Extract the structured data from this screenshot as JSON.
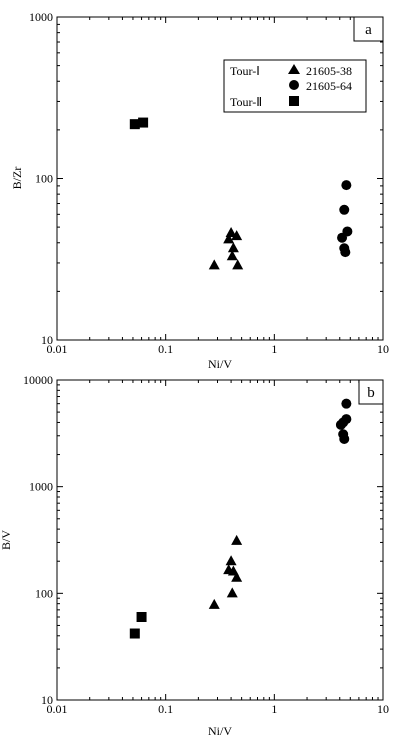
{
  "chart_data": [
    {
      "type": "scatter",
      "panel_label": "a",
      "xlabel": "Ni/V",
      "ylabel": "B/Zr",
      "xscale": "log",
      "yscale": "log",
      "xlim": [
        0.01,
        10
      ],
      "ylim": [
        10,
        1000
      ],
      "x_tick_labels": [
        "0.01",
        "0.1",
        "1",
        "10"
      ],
      "y_tick_labels": [
        "10",
        "100",
        "1000"
      ],
      "legend": {
        "placement": "top-right",
        "groups": [
          "Tour-Ⅰ",
          "Tour-Ⅱ"
        ],
        "entries": [
          {
            "group": "Tour-Ⅰ",
            "name": "21605-38",
            "marker": "triangle"
          },
          {
            "group": "Tour-Ⅰ",
            "name": "21605-64",
            "marker": "circle"
          },
          {
            "group": "Tour-Ⅱ",
            "name": "",
            "marker": "square"
          }
        ]
      },
      "series": [
        {
          "name": "21605-38",
          "marker": "triangle",
          "x": [
            0.28,
            0.38,
            0.4,
            0.42,
            0.45,
            0.41,
            0.46
          ],
          "y": [
            29,
            42,
            46,
            37,
            44,
            33,
            29
          ]
        },
        {
          "name": "21605-64",
          "marker": "circle",
          "x": [
            4.6,
            4.4,
            4.7,
            4.2,
            4.4,
            4.5
          ],
          "y": [
            91,
            64,
            47,
            43,
            37,
            35
          ]
        },
        {
          "name": "Tour-Ⅱ",
          "marker": "square",
          "x": [
            0.052,
            0.062
          ],
          "y": [
            217,
            222
          ]
        }
      ]
    },
    {
      "type": "scatter",
      "panel_label": "b",
      "xlabel": "Ni/V",
      "ylabel": "B/V",
      "xscale": "log",
      "yscale": "log",
      "xlim": [
        0.01,
        10
      ],
      "ylim": [
        10,
        10000
      ],
      "x_tick_labels": [
        "0.01",
        "0.1",
        "1",
        "10"
      ],
      "y_tick_labels": [
        "10",
        "100",
        "1000",
        "10000"
      ],
      "series": [
        {
          "name": "21605-38",
          "marker": "triangle",
          "x": [
            0.28,
            0.38,
            0.4,
            0.42,
            0.45,
            0.41,
            0.45
          ],
          "y": [
            78,
            165,
            200,
            160,
            140,
            100,
            310
          ]
        },
        {
          "name": "21605-64",
          "marker": "circle",
          "x": [
            4.6,
            4.6,
            4.3,
            4.1,
            4.3,
            4.4
          ],
          "y": [
            6000,
            4300,
            4000,
            3800,
            3100,
            2800
          ]
        },
        {
          "name": "Tour-Ⅱ",
          "marker": "square",
          "x": [
            0.052,
            0.06
          ],
          "y": [
            42,
            60
          ]
        }
      ]
    }
  ]
}
